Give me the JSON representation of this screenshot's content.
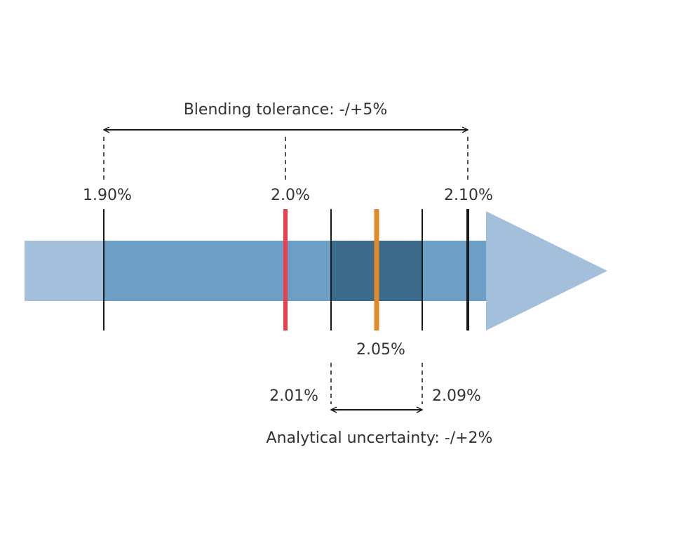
{
  "diagram": {
    "blending_tolerance": {
      "label": "Blending tolerance: -/+5%",
      "low": "1.90%",
      "target": "2.0%",
      "high": "2.10%"
    },
    "analytical_uncertainty": {
      "label": "Analytical uncertainty: -/+2%",
      "low": "2.01%",
      "measured": "2.05%",
      "high": "2.09%"
    },
    "colors": {
      "arrow_light": "#a3bfdc",
      "arrow_mid": "#6d9ec6",
      "arrow_dark": "#3d6b8c",
      "target_line": "#e8404e",
      "measured_line": "#e08a2a",
      "line": "#1a1a1a"
    }
  }
}
